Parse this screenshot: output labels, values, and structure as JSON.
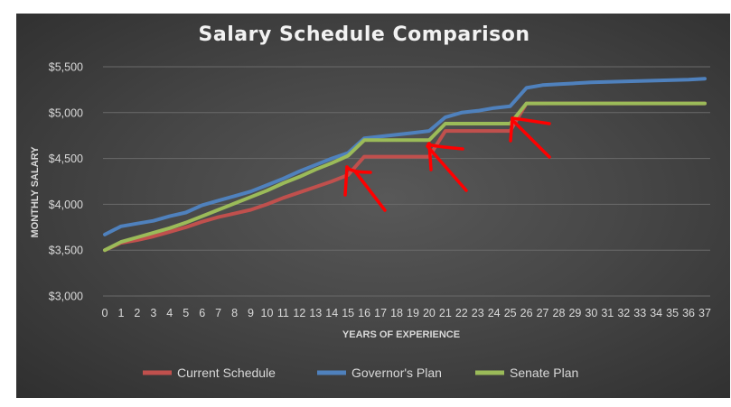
{
  "chart_data": {
    "type": "line",
    "title": "Salary Schedule Comparison",
    "xlabel": "YEARS OF EXPERIENCE",
    "ylabel": "MONTHLY SALARY",
    "ylim": [
      3000,
      5500
    ],
    "yticks": [
      "$3,000",
      "$3,500",
      "$4,000",
      "$4,500",
      "$5,000",
      "$5,500"
    ],
    "ytick_values": [
      3000,
      3500,
      4000,
      4500,
      5000,
      5500
    ],
    "x": [
      "0",
      "1",
      "2",
      "3",
      "4",
      "5",
      "6",
      "7",
      "8",
      "9",
      "10",
      "11",
      "12",
      "13",
      "14",
      "15",
      "16",
      "17",
      "18",
      "19",
      "20",
      "21",
      "22",
      "23",
      "24",
      "25",
      "26",
      "27",
      "28",
      "29",
      "30",
      "31",
      "32",
      "33",
      "34",
      "35",
      "36",
      "37"
    ],
    "grid": true,
    "legend_position": "bottom",
    "series": [
      {
        "name": "Current Schedule",
        "color": "#c0504d",
        "values": [
          3500,
          3580,
          3610,
          3650,
          3700,
          3750,
          3810,
          3860,
          3900,
          3940,
          4000,
          4070,
          4130,
          4190,
          4250,
          4320,
          4520,
          4520,
          4520,
          4520,
          4520,
          4800,
          4800,
          4800,
          4800,
          4800,
          5100,
          5100,
          5100,
          5100,
          5100,
          5100,
          5100,
          5100,
          5100,
          5100,
          5100,
          5100
        ]
      },
      {
        "name": "Governor's Plan",
        "color": "#4f81bd",
        "values": [
          3670,
          3760,
          3790,
          3820,
          3870,
          3910,
          3990,
          4040,
          4090,
          4140,
          4210,
          4280,
          4360,
          4430,
          4500,
          4560,
          4720,
          4740,
          4760,
          4780,
          4800,
          4950,
          5000,
          5020,
          5050,
          5070,
          5270,
          5300,
          5310,
          5320,
          5330,
          5335,
          5340,
          5345,
          5350,
          5355,
          5360,
          5370
        ]
      },
      {
        "name": "Senate Plan",
        "color": "#9bbb59",
        "values": [
          3500,
          3590,
          3640,
          3690,
          3740,
          3800,
          3870,
          3940,
          4010,
          4080,
          4150,
          4230,
          4300,
          4380,
          4450,
          4530,
          4700,
          4700,
          4700,
          4700,
          4700,
          4880,
          4880,
          4880,
          4880,
          4880,
          5100,
          5100,
          5100,
          5100,
          5100,
          5100,
          5100,
          5100,
          5100,
          5100,
          5100,
          5100
        ]
      }
    ],
    "annotations": {
      "arrow_color": "#ff0000",
      "arrows_pointing_at_x": [
        15,
        20,
        25
      ]
    }
  }
}
